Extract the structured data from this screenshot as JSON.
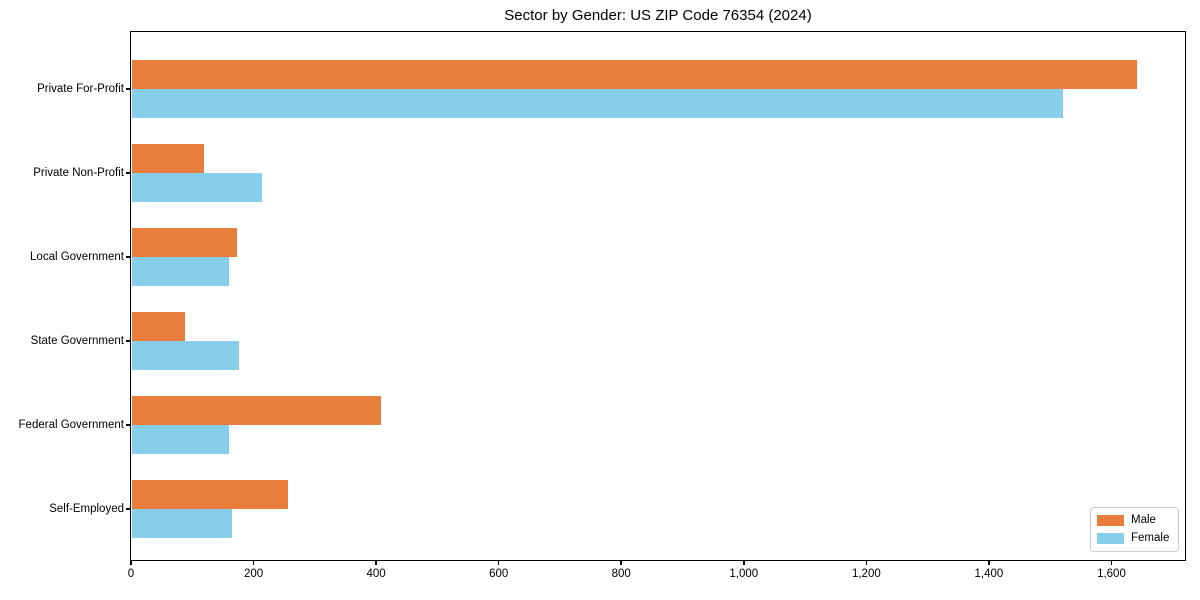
{
  "title": "Sector by Gender: US ZIP Code 76354 (2024)",
  "colors": {
    "male": "#e87d3c",
    "female": "#87ceeb",
    "axis": "#000000",
    "legend_border": "#cccccc",
    "background": "#ffffff"
  },
  "legend": {
    "position": "lower right",
    "items": [
      {
        "label": "Male",
        "color": "#e87d3c"
      },
      {
        "label": "Female",
        "color": "#87ceeb"
      }
    ]
  },
  "chart_data": {
    "type": "bar",
    "orientation": "horizontal",
    "title": "Sector by Gender: US ZIP Code 76354 (2024)",
    "xlabel": "",
    "ylabel": "",
    "categories": [
      "Private For-Profit",
      "Private Non-Profit",
      "Local Government",
      "State Government",
      "Federal Government",
      "Self-Employed"
    ],
    "series": [
      {
        "name": "Male",
        "color": "#e87d3c",
        "values": [
          1640,
          118,
          171,
          87,
          407,
          255
        ]
      },
      {
        "name": "Female",
        "color": "#87ceeb",
        "values": [
          1520,
          212,
          158,
          175,
          158,
          163
        ]
      }
    ],
    "xlim": [
      0,
      1720
    ],
    "xticks": [
      0,
      200,
      400,
      600,
      800,
      1000,
      1200,
      1400,
      1600
    ],
    "xtick_labels": [
      "0",
      "200",
      "400",
      "600",
      "800",
      "1,000",
      "1,200",
      "1,400",
      "1,600"
    ],
    "grid": false,
    "legend_position": "lower right"
  }
}
